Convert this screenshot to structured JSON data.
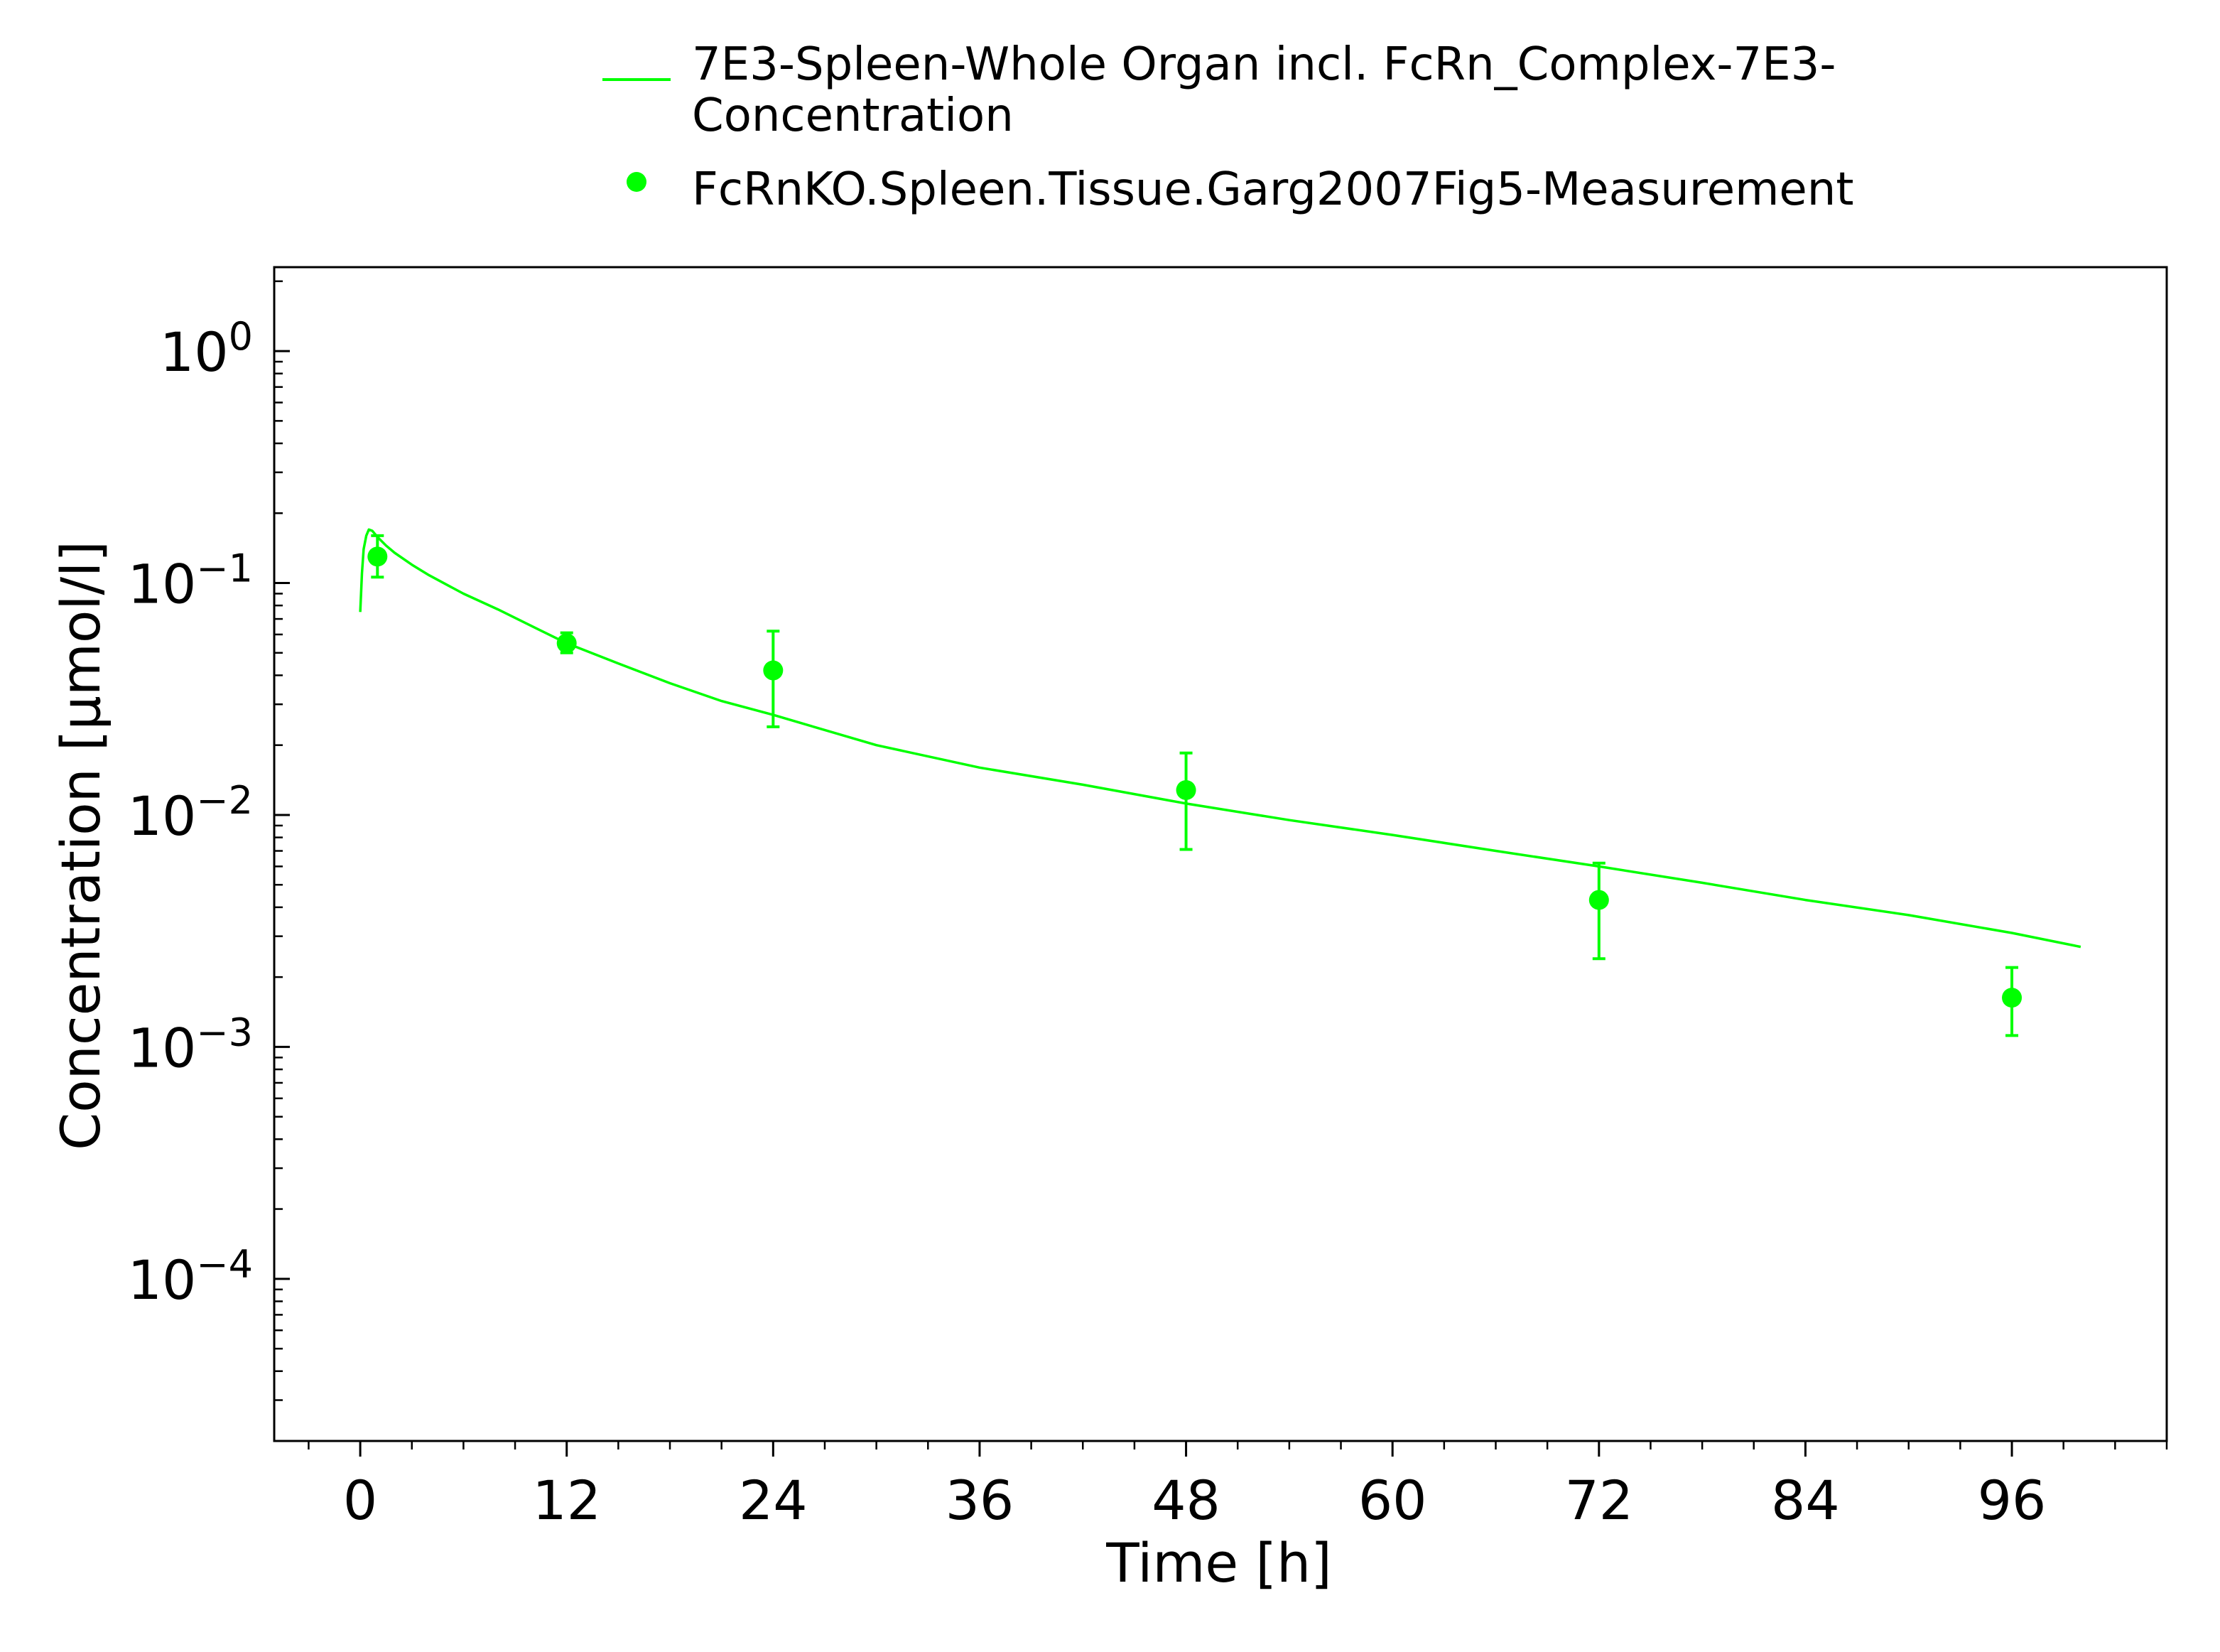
{
  "chart_data": {
    "type": "line",
    "xlabel": "Time [h]",
    "ylabel": "Concentration [µmol/l]",
    "xlim": [
      -5,
      105
    ],
    "ylim": [
      2e-05,
      2.3
    ],
    "yscale": "log",
    "grid": false,
    "legend_position": "top",
    "x_ticks": [
      0,
      12,
      24,
      36,
      48,
      60,
      72,
      84,
      96
    ],
    "x_tick_labels": [
      "0",
      "12",
      "24",
      "36",
      "48",
      "60",
      "72",
      "84",
      "96"
    ],
    "y_ticks": [
      {
        "value": 1,
        "base": "10",
        "exponent": "0"
      },
      {
        "value": 0.1,
        "base": "10",
        "exponent": "−1"
      },
      {
        "value": 0.01,
        "base": "10",
        "exponent": "−2"
      },
      {
        "value": 0.001,
        "base": "10",
        "exponent": "−3"
      },
      {
        "value": 0.0001,
        "base": "10",
        "exponent": "−4"
      }
    ],
    "series": [
      {
        "name": "7E3-Spleen-Whole Organ incl. FcRn_Complex-7E3-Concentration",
        "legend_lines": [
          "7E3-Spleen-Whole Organ incl. FcRn_Complex-7E3-",
          "Concentration"
        ],
        "kind": "line",
        "color": "#00ff00",
        "x": [
          0,
          0.1,
          0.2,
          0.35,
          0.5,
          0.7,
          1.0,
          1.5,
          2,
          3,
          4,
          6,
          8,
          10,
          12,
          15,
          18,
          21,
          24,
          30,
          36,
          42,
          48,
          54,
          60,
          66,
          72,
          78,
          84,
          90,
          96,
          100
        ],
        "y": [
          0.075,
          0.11,
          0.14,
          0.16,
          0.17,
          0.168,
          0.158,
          0.145,
          0.135,
          0.12,
          0.108,
          0.09,
          0.077,
          0.065,
          0.055,
          0.045,
          0.037,
          0.031,
          0.027,
          0.02,
          0.016,
          0.0135,
          0.0112,
          0.0095,
          0.0082,
          0.007,
          0.006,
          0.0051,
          0.0043,
          0.0037,
          0.0031,
          0.0027
        ]
      },
      {
        "name": "FcRnKO.Spleen.Tissue.Garg2007Fig5-Measurement",
        "kind": "scatter",
        "color": "#00ff00",
        "points": [
          {
            "x": 1,
            "y": 0.13,
            "ylow": 0.106,
            "yhigh": 0.16
          },
          {
            "x": 12,
            "y": 0.055,
            "ylow": 0.05,
            "yhigh": 0.061
          },
          {
            "x": 24,
            "y": 0.042,
            "ylow": 0.024,
            "yhigh": 0.062
          },
          {
            "x": 48,
            "y": 0.0128,
            "ylow": 0.0071,
            "yhigh": 0.0185
          },
          {
            "x": 72,
            "y": 0.0043,
            "ylow": 0.0024,
            "yhigh": 0.0062
          },
          {
            "x": 96,
            "y": 0.00163,
            "ylow": 0.00112,
            "yhigh": 0.0022
          }
        ]
      }
    ]
  }
}
